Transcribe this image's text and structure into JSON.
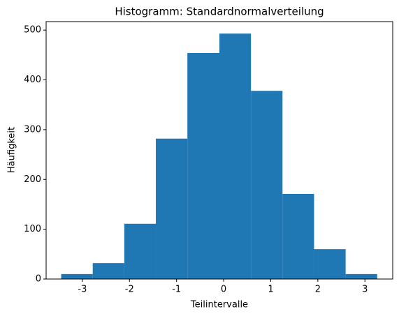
{
  "chart_data": {
    "type": "histogram",
    "title": "Histogramm: Standardnormalverteilung",
    "x_label": "Teilintervalle",
    "y_label": "Häufigkeit",
    "bins": [
      -3.45,
      -2.78,
      -2.11,
      -1.44,
      -0.77,
      -0.09,
      0.58,
      1.25,
      1.92,
      2.59,
      3.26
    ],
    "counts": [
      10,
      32,
      111,
      282,
      454,
      493,
      378,
      171,
      60,
      10
    ],
    "color": "#1f77b4",
    "xlim": [
      -3.77,
      3.59
    ],
    "xticks": [
      -3,
      -2,
      -1,
      0,
      1,
      2,
      3
    ],
    "ylim": [
      0,
      517
    ],
    "yticks": [
      0,
      100,
      200,
      300,
      400,
      500
    ],
    "grid": false
  }
}
